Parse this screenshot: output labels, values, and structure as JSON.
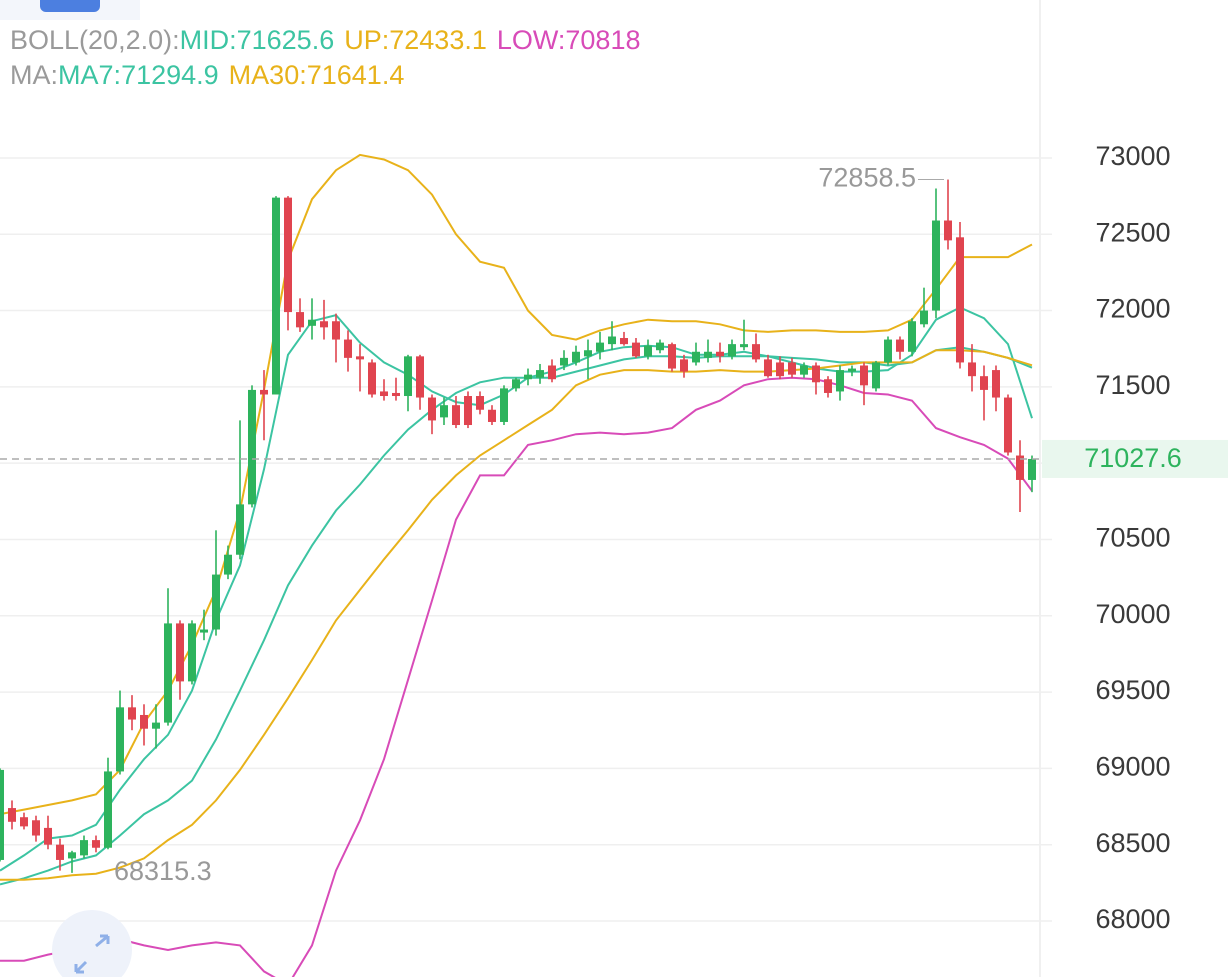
{
  "chart_data": {
    "type": "candlestick",
    "boll_label": "BOLL(20,2.0):",
    "ma_label": "MA:",
    "separator": ":",
    "ylim": [
      67633,
      74035
    ],
    "yticks": [
      68000,
      68500,
      69000,
      69500,
      70000,
      70500,
      71000,
      71500,
      72000,
      72500,
      73000
    ],
    "xlim": [
      0,
      86
    ],
    "grid": true,
    "up_color": "#2db35d",
    "down_color": "#e0444f",
    "open": [
      68400,
      68740,
      68680,
      68660,
      68610,
      68500,
      68410,
      68430,
      68530,
      68480,
      68980,
      69400,
      69350,
      69260,
      69300,
      69950,
      69570,
      69890,
      69910,
      70270,
      70400,
      70730,
      71480,
      71450,
      72740,
      71990,
      71900,
      71930,
      71930,
      71810,
      71700,
      71660,
      71470,
      71460,
      71440,
      71700,
      71430,
      71300,
      71380,
      71440,
      71440,
      71350,
      71270,
      71490,
      71550,
      71560,
      71640,
      71640,
      71660,
      71700,
      71730,
      71780,
      71820,
      71790,
      71700,
      71740,
      71780,
      71680,
      71660,
      71690,
      71730,
      71700,
      71760,
      71780,
      71680,
      71660,
      71660,
      71580,
      71640,
      71550,
      71470,
      71600,
      71640,
      71490,
      71660,
      71810,
      71730,
      71910,
      72000,
      72590,
      72480,
      71660,
      71570,
      71610,
      71430,
      71050,
      70890
    ],
    "high": [
      69000,
      68790,
      68710,
      68690,
      68690,
      68540,
      68460,
      68560,
      68560,
      69070,
      69510,
      69480,
      69420,
      69420,
      70180,
      69970,
      69970,
      70040,
      70560,
      70460,
      71280,
      71510,
      71610,
      72750,
      72750,
      72080,
      72080,
      72070,
      71980,
      71870,
      71780,
      71680,
      71550,
      71560,
      71710,
      71710,
      71450,
      71430,
      71440,
      71470,
      71470,
      71380,
      71510,
      71560,
      71620,
      71650,
      71680,
      71740,
      71770,
      71810,
      71860,
      71930,
      71860,
      71820,
      71810,
      71810,
      71790,
      71710,
      71790,
      71810,
      71790,
      71810,
      71940,
      71850,
      71710,
      71700,
      71690,
      71660,
      71660,
      71570,
      71640,
      71640,
      71660,
      71670,
      71830,
      71830,
      71950,
      72150,
      72800,
      72858.5,
      72580,
      71780,
      71640,
      71640,
      71450,
      71150,
      71050
    ],
    "low": [
      68390,
      68600,
      68600,
      68520,
      68470,
      68330,
      68315.3,
      68410,
      68450,
      68470,
      68960,
      69250,
      69150,
      69130,
      69280,
      69450,
      69550,
      69840,
      69870,
      70240,
      70370,
      70710,
      71150,
      71450,
      71870,
      71860,
      71810,
      71810,
      71660,
      71600,
      71470,
      71430,
      71410,
      71410,
      71340,
      71350,
      71190,
      71250,
      71230,
      71230,
      71320,
      71250,
      71250,
      71470,
      71510,
      71520,
      71530,
      71610,
      71640,
      71550,
      71680,
      71740,
      71770,
      71690,
      71680,
      71720,
      71600,
      71560,
      71640,
      71660,
      71660,
      71680,
      71740,
      71660,
      71560,
      71550,
      71560,
      71560,
      71450,
      71430,
      71410,
      71570,
      71380,
      71470,
      71640,
      71680,
      71700,
      71890,
      71950,
      72400,
      71620,
      71470,
      71280,
      71340,
      71050,
      70680,
      70810
    ],
    "close": [
      68990,
      68650,
      68620,
      68560,
      68500,
      68400,
      68450,
      68530,
      68480,
      68980,
      69400,
      69320,
      69260,
      69300,
      69950,
      69570,
      69950,
      69910,
      70270,
      70400,
      70730,
      71480,
      71450,
      72740,
      71990,
      71890,
      71940,
      71890,
      71810,
      71690,
      71680,
      71450,
      71440,
      71440,
      71700,
      71430,
      71280,
      71380,
      71250,
      71250,
      71350,
      71270,
      71490,
      71550,
      71580,
      71610,
      71550,
      71690,
      71730,
      71740,
      71790,
      71830,
      71780,
      71700,
      71770,
      71790,
      71620,
      71600,
      71730,
      71730,
      71700,
      71780,
      71780,
      71680,
      71570,
      71570,
      71580,
      71640,
      71530,
      71460,
      71610,
      71620,
      71510,
      71660,
      71810,
      71730,
      71930,
      72000,
      72590,
      72460,
      71660,
      71570,
      71480,
      71430,
      71070,
      70890,
      71027.6
    ],
    "overlay_x": [
      0,
      2,
      4,
      6,
      8,
      10,
      12,
      14,
      16,
      18,
      20,
      22,
      24,
      26,
      28,
      30,
      32,
      34,
      36,
      38,
      40,
      42,
      44,
      46,
      48,
      50,
      52,
      54,
      56,
      58,
      60,
      62,
      64,
      66,
      68,
      70,
      72,
      74,
      76,
      78,
      80,
      82,
      84,
      86
    ],
    "overlays": [
      {
        "name": "MID",
        "color": "#3cc4a2",
        "values": [
          68240,
          68280,
          68330,
          68390,
          68430,
          68560,
          68700,
          68790,
          68920,
          69190,
          69510,
          69840,
          70200,
          70460,
          70690,
          70860,
          71050,
          71220,
          71350,
          71460,
          71530,
          71560,
          71560,
          71560,
          71600,
          71640,
          71680,
          71700,
          71700,
          71690,
          71700,
          71700,
          71700,
          71690,
          71680,
          71660,
          71660,
          71640,
          71660,
          71740,
          71760,
          71730,
          71690,
          71625.6
        ]
      },
      {
        "name": "UP",
        "color": "#e8b21a",
        "values": [
          68700,
          68730,
          68760,
          68790,
          68830,
          68990,
          69300,
          69510,
          69810,
          70170,
          70690,
          71480,
          72330,
          72730,
          72920,
          73020,
          72990,
          72920,
          72760,
          72500,
          72320,
          72280,
          72000,
          71840,
          71810,
          71870,
          71910,
          71940,
          71930,
          71930,
          71910,
          71870,
          71860,
          71870,
          71870,
          71860,
          71860,
          71870,
          71940,
          72140,
          72350,
          72350,
          72350,
          72433.1
        ]
      },
      {
        "name": "LOW",
        "color": "#d84bb8",
        "values": [
          67740,
          67740,
          67780,
          67810,
          67840,
          67880,
          67840,
          67810,
          67840,
          67860,
          67840,
          67670,
          67580,
          67840,
          68330,
          68660,
          69060,
          69580,
          70100,
          70630,
          70920,
          70920,
          71120,
          71150,
          71190,
          71200,
          71190,
          71200,
          71230,
          71350,
          71410,
          71510,
          71550,
          71560,
          71550,
          71510,
          71460,
          71450,
          71410,
          71230,
          71170,
          71120,
          71030,
          70818.0
        ]
      },
      {
        "name": "MA7",
        "color": "#3cc4a2",
        "values": [
          68330,
          68430,
          68540,
          68560,
          68630,
          68860,
          69060,
          69220,
          69510,
          69970,
          70330,
          70960,
          71710,
          71930,
          71970,
          71790,
          71660,
          71580,
          71470,
          71400,
          71380,
          71450,
          71560,
          71600,
          71660,
          71730,
          71760,
          71770,
          71760,
          71710,
          71710,
          71730,
          71700,
          71660,
          71620,
          71600,
          71600,
          71610,
          71710,
          71940,
          72020,
          71950,
          71780,
          71294.9
        ]
      },
      {
        "name": "MA30",
        "color": "#e8b21a",
        "values": [
          68270,
          68270,
          68280,
          68300,
          68310,
          68350,
          68410,
          68530,
          68630,
          68790,
          68990,
          69220,
          69460,
          69710,
          69970,
          70170,
          70370,
          70560,
          70760,
          70920,
          71050,
          71150,
          71250,
          71350,
          71510,
          71580,
          71610,
          71610,
          71600,
          71600,
          71610,
          71600,
          71600,
          71610,
          71620,
          71640,
          71660,
          71660,
          71660,
          71740,
          71740,
          71730,
          71690,
          71641.4
        ]
      }
    ]
  }
}
